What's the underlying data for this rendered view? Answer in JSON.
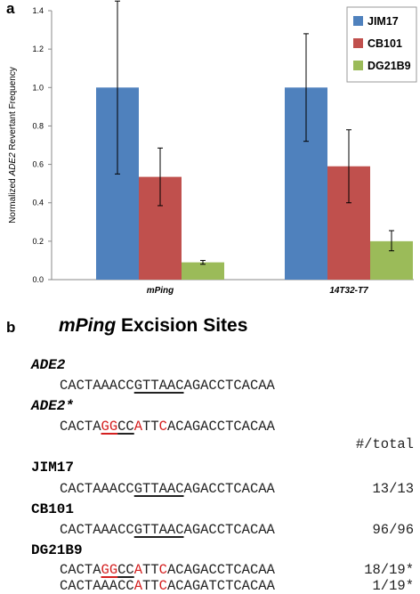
{
  "panel_a_label": "a",
  "panel_b_label": "b",
  "chart_data": {
    "type": "bar",
    "categories": [
      "mPing",
      "14T32-T7"
    ],
    "series": [
      {
        "name": "JIM17",
        "values": [
          1.0,
          1.0
        ],
        "err_low": [
          0.55,
          0.72
        ],
        "err_high": [
          1.45,
          1.28
        ],
        "color": "#4f81bd"
      },
      {
        "name": "CB101",
        "values": [
          0.535,
          0.59
        ],
        "err_low": [
          0.385,
          0.4
        ],
        "err_high": [
          0.685,
          0.78
        ],
        "color": "#c0504d"
      },
      {
        "name": "DG21B9",
        "values": [
          0.09,
          0.2
        ],
        "err_low": [
          0.08,
          0.15
        ],
        "err_high": [
          0.1,
          0.255
        ],
        "color": "#9bbb59"
      }
    ],
    "ylabel": "Normalized ADE2 Revertant Frequency",
    "ylabel_parts": [
      "Normalized ",
      "ADE2",
      " Revertant Frequency"
    ],
    "xlabel": "",
    "ylim": [
      0,
      1.4
    ],
    "yticks": [
      "0.0",
      "0.2",
      "0.4",
      "0.6",
      "0.8",
      "1.0",
      "1.2",
      "1.4"
    ],
    "legend_position": "top-right",
    "grid": false
  },
  "panel_b": {
    "title_italic": "mPing",
    "title_rest": " Excision Sites",
    "total_header": "#/total",
    "rows": [
      {
        "strain": "ADE2",
        "strain_italic": true,
        "seq_parts": [
          {
            "t": "CACTAAACC"
          },
          {
            "t": "GTTAAC",
            "u": true
          },
          {
            "t": "AGACCTCACAA"
          }
        ],
        "count": ""
      },
      {
        "strain": "ADE2*",
        "strain_italic": true,
        "seq_parts": [
          {
            "t": "CACTA"
          },
          {
            "t": "GG",
            "u": true,
            "r": true
          },
          {
            "t": "CC",
            "u": true
          },
          {
            "t": "A",
            "r": true
          },
          {
            "t": "TT"
          },
          {
            "t": "C",
            "r": true
          },
          {
            "t": "ACAGACCTCACAA"
          }
        ],
        "count": ""
      },
      {
        "strain": "JIM17",
        "strain_italic": false,
        "seq_parts": [
          {
            "t": "CACTAAACC"
          },
          {
            "t": "GTTAAC",
            "u": true
          },
          {
            "t": "AGACCTCACAA"
          }
        ],
        "count": "13/13"
      },
      {
        "strain": "CB101",
        "strain_italic": false,
        "seq_parts": [
          {
            "t": "CACTAAACC"
          },
          {
            "t": "GTTAAC",
            "u": true
          },
          {
            "t": "AGACCTCACAA"
          }
        ],
        "count": "96/96"
      },
      {
        "strain": "DG21B9",
        "strain_italic": false,
        "seq_parts": [
          {
            "t": "CACTA"
          },
          {
            "t": "GG",
            "u": true,
            "r": true
          },
          {
            "t": "CC",
            "u": true
          },
          {
            "t": "A",
            "r": true
          },
          {
            "t": "TT"
          },
          {
            "t": "C",
            "r": true
          },
          {
            "t": "ACAGACCTCACAA"
          }
        ],
        "count": "18/19*"
      },
      {
        "strain": "",
        "strain_italic": false,
        "seq_parts": [
          {
            "t": "CACTAAACC"
          },
          {
            "t": "A",
            "r": true
          },
          {
            "t": "TT"
          },
          {
            "t": "C",
            "r": true
          },
          {
            "t": "ACAGATCTCACAA"
          }
        ],
        "count": "1/19*"
      }
    ]
  }
}
